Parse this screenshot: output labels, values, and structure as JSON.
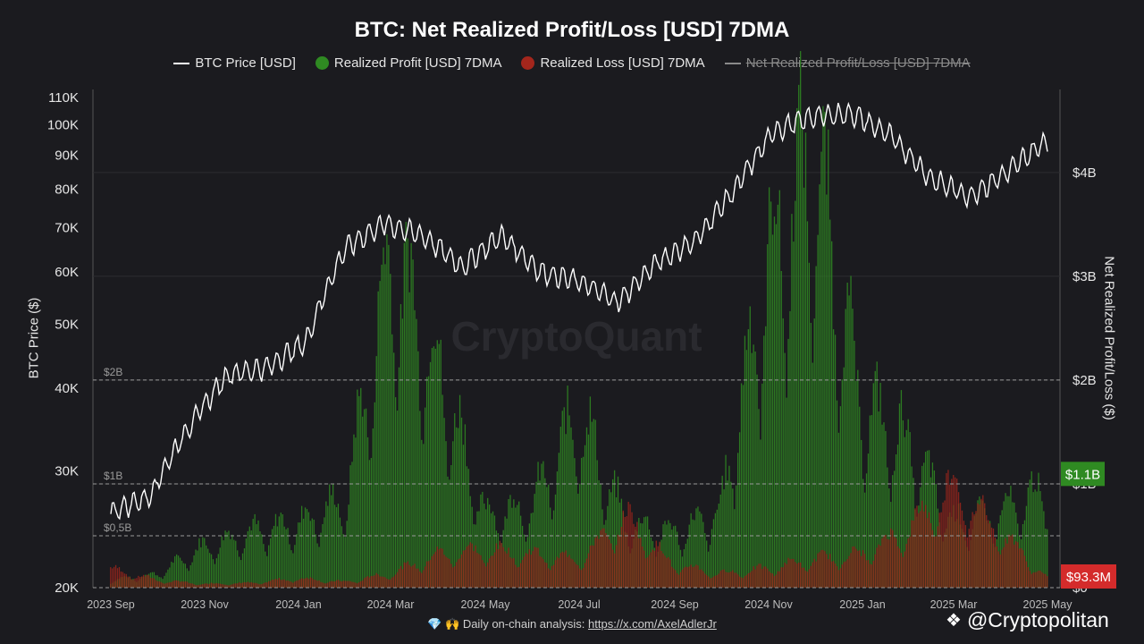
{
  "header": {
    "title": "BTC: Net Realized Profit/Loss [USD] 7DMA"
  },
  "legend": [
    {
      "label": "BTC Price [USD]",
      "swatch": "line",
      "color": "#ffffff",
      "active": true
    },
    {
      "label": "Realized Profit [USD] 7DMA",
      "swatch": "dot",
      "color": "#2f8a22",
      "active": true
    },
    {
      "label": "Realized Loss [USD] 7DMA",
      "swatch": "dot",
      "color": "#a3261c",
      "active": true
    },
    {
      "label": "Net Realized Profit/Loss [USD] 7DMA",
      "swatch": "line",
      "color": "#8a8a8a",
      "active": false
    }
  ],
  "axes": {
    "left_label": "BTC Price ($)",
    "right_label": "Net Realized Profit/Loss ($)"
  },
  "watermark": "CryptoQuant",
  "footer": {
    "emoji": "💎 🙌",
    "text": "Daily on-chain analysis:",
    "link": "https://x.com/AxelAdlerJr"
  },
  "brand": {
    "name": "@Cryptopolitan",
    "icon": "binance-diamond-icon"
  },
  "chart_data": {
    "type": "line+bar",
    "title": "BTC: Net Realized Profit/Loss [USD] 7DMA",
    "x_ticks": [
      "2023 Sep",
      "2023 Nov",
      "2024 Jan",
      "2024 Mar",
      "2024 May",
      "2024 Jul",
      "2024 Sep",
      "2024 Nov",
      "2025 Jan",
      "2025 Mar",
      "2025 May"
    ],
    "left_axis": {
      "label": "BTC Price ($)",
      "scale": "log",
      "ticks": [
        "20K",
        "30K",
        "40K",
        "50K",
        "60K",
        "70K",
        "80K",
        "90K",
        "100K",
        "110K"
      ],
      "range": [
        20000,
        110000
      ]
    },
    "right_axis": {
      "label": "Net Realized Profit/Loss ($)",
      "ticks": [
        "$0",
        "$1B",
        "$2B",
        "$3B",
        "$4B"
      ],
      "range": [
        0,
        4800000000
      ]
    },
    "reference_lines": [
      {
        "label": "$0,5B",
        "value": 500000000
      },
      {
        "label": "$1B",
        "value": 1000000000
      },
      {
        "label": "$2B",
        "value": 2000000000
      }
    ],
    "last_values": {
      "realized_profit": "$1.1B",
      "realized_loss": "$93.3M"
    },
    "series": [
      {
        "name": "BTC Price [USD]",
        "kind": "line",
        "color": "#ffffff",
        "points": [
          [
            "2023 Sep",
            26000
          ],
          [
            "2023 Oct",
            27500
          ],
          [
            "2023 Nov",
            35000
          ],
          [
            "2023 Dec",
            42000
          ],
          [
            "2024 Jan",
            43000
          ],
          [
            "2024 Feb",
            47000
          ],
          [
            "2024 Mar",
            65000
          ],
          [
            "2024 Mar",
            71000
          ],
          [
            "2024 Apr",
            68000
          ],
          [
            "2024 May",
            61000
          ],
          [
            "2024 Jun",
            68000
          ],
          [
            "2024 Jul",
            60000
          ],
          [
            "2024 Aug",
            58000
          ],
          [
            "2024 Sep",
            54000
          ],
          [
            "2024 Oct",
            62000
          ],
          [
            "2024 Oct",
            67000
          ],
          [
            "2024 Nov",
            80000
          ],
          [
            "2024 Dec",
            98000
          ],
          [
            "2025 Jan",
            103000
          ],
          [
            "2025 Jan",
            104000
          ],
          [
            "2025 Feb",
            96000
          ],
          [
            "2025 Mar",
            83000
          ],
          [
            "2025 Apr",
            78000
          ],
          [
            "2025 Apr",
            85000
          ],
          [
            "2025 May",
            95000
          ]
        ]
      },
      {
        "name": "Realized Profit [USD] 7DMA",
        "kind": "bar",
        "color": "#2f8a22",
        "points": [
          [
            "2023 Sep",
            80000000
          ],
          [
            "2023 Oct",
            150000000
          ],
          [
            "2023 Nov",
            450000000
          ],
          [
            "2023 Dec",
            600000000
          ],
          [
            "2024 Jan",
            700000000
          ],
          [
            "2024 Feb",
            950000000
          ],
          [
            "2024 Mar",
            3600000000
          ],
          [
            "2024 Apr",
            2400000000
          ],
          [
            "2024 May",
            800000000
          ],
          [
            "2024 Jun",
            900000000
          ],
          [
            "2024 Jul",
            1900000000
          ],
          [
            "2024 Aug",
            700000000
          ],
          [
            "2024 Sep",
            600000000
          ],
          [
            "2024 Oct",
            800000000
          ],
          [
            "2024 Nov",
            3500000000
          ],
          [
            "2024 Dec",
            4700000000
          ],
          [
            "2025 Jan",
            2000000000
          ],
          [
            "2025 Feb",
            1600000000
          ],
          [
            "2025 Mar",
            700000000
          ],
          [
            "2025 Apr",
            800000000
          ],
          [
            "2025 May",
            1100000000
          ]
        ]
      },
      {
        "name": "Realized Loss [USD] 7DMA",
        "kind": "bar",
        "color": "#a3261c",
        "points": [
          [
            "2023 Sep",
            200000000
          ],
          [
            "2023 Oct",
            80000000
          ],
          [
            "2023 Nov",
            40000000
          ],
          [
            "2023 Dec",
            50000000
          ],
          [
            "2024 Jan",
            100000000
          ],
          [
            "2024 Feb",
            60000000
          ],
          [
            "2024 Mar",
            150000000
          ],
          [
            "2024 Apr",
            350000000
          ],
          [
            "2024 May",
            400000000
          ],
          [
            "2024 Jun",
            350000000
          ],
          [
            "2024 Jul",
            300000000
          ],
          [
            "2024 Aug",
            750000000
          ],
          [
            "2024 Sep",
            250000000
          ],
          [
            "2024 Oct",
            150000000
          ],
          [
            "2024 Nov",
            200000000
          ],
          [
            "2024 Dec",
            300000000
          ],
          [
            "2025 Jan",
            350000000
          ],
          [
            "2025 Feb",
            600000000
          ],
          [
            "2025 Mar",
            1100000000
          ],
          [
            "2025 Apr",
            600000000
          ],
          [
            "2025 May",
            93300000
          ]
        ]
      }
    ]
  }
}
